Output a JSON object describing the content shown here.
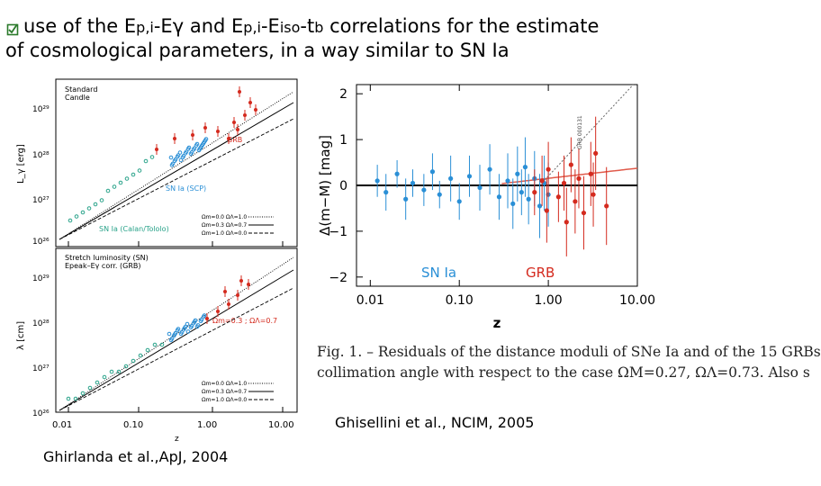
{
  "slide": {
    "title_parts": {
      "lead": "use of the  E",
      "p_i_1": "p,i",
      "mid1": "-E",
      "gamma": "γ",
      "mid2": " and E",
      "p_i_2": "p,i",
      "mid3": "-E",
      "iso": "iso",
      "mid4": "-t",
      "b": "b",
      "tail": " correlations for the estimate"
    },
    "title_line2": "of cosmological parameters, in a way similar to SN Ia",
    "credit_left": "Ghirlanda et al.,ApJ, 2004",
    "credit_right": "Ghisellini et al., NCIM, 2005",
    "colors": {
      "bullet": "#2b7a2b",
      "grb": "#d42a1e",
      "sn": "#2a8fd6",
      "sn_teal": "#2aa38a"
    }
  },
  "left_figure": {
    "top_panel": {
      "legend_title_1": "Standard",
      "legend_title_2": "Candle",
      "ylabel": "L_γ [erg]",
      "yticks": [
        "10²⁹",
        "10²⁸",
        "10²⁷",
        "10²⁶"
      ],
      "label_grb": "GRB",
      "label_sn_scp": "SN Ia (SCP)",
      "label_sn_calan": "SN Ia (Calan/Tololo)",
      "legend_lines": [
        "Ωm=0.0  ΩΛ=1.0",
        "Ωm=0.3  ΩΛ=0.7",
        "Ωm=1.0  ΩΛ=0.0"
      ]
    },
    "bottom_panel": {
      "legend_title_1": "Stretch luminosity (SN)",
      "legend_title_2": "Epeak–Eγ corr. (GRB)",
      "ylabel": "λ [cm]",
      "yticks": [
        "10²⁹",
        "10²⁸",
        "10²⁷",
        "10²⁶"
      ],
      "annotation": "Ωm=0.3 ; ΩΛ=0.7",
      "legend_lines": [
        "Ωm=0.0  ΩΛ=1.0",
        "Ωm=0.3  ΩΛ=0.7",
        "Ωm=1.0  ΩΛ=0.0"
      ]
    },
    "xticks": [
      "0.01",
      "0.10",
      "1.00",
      "10.00"
    ],
    "xlabel": "z"
  },
  "chart_data": {
    "type": "scatter",
    "ylabel": "Δ(m−M) [mag]",
    "xlabel": "z",
    "x_scale": "log",
    "xlim": [
      0.007,
      10
    ],
    "ylim": [
      -2.2,
      2.2
    ],
    "xticks": [
      "0.01",
      "0.10",
      "1.00",
      "10.00"
    ],
    "yticks": [
      "2",
      "1",
      "0",
      "−1",
      "−2"
    ],
    "labels": {
      "sn": "SN Ia",
      "grb": "GRB",
      "rotated_note": "GRB 000131"
    },
    "series": [
      {
        "name": "SN Ia",
        "color": "#2a8fd6",
        "points": [
          {
            "x": 0.012,
            "y": 0.1,
            "e": 0.35
          },
          {
            "x": 0.015,
            "y": -0.15,
            "e": 0.4
          },
          {
            "x": 0.02,
            "y": 0.25,
            "e": 0.3
          },
          {
            "x": 0.025,
            "y": -0.3,
            "e": 0.45
          },
          {
            "x": 0.03,
            "y": 0.05,
            "e": 0.3
          },
          {
            "x": 0.04,
            "y": -0.1,
            "e": 0.35
          },
          {
            "x": 0.05,
            "y": 0.3,
            "e": 0.4
          },
          {
            "x": 0.06,
            "y": -0.2,
            "e": 0.3
          },
          {
            "x": 0.08,
            "y": 0.15,
            "e": 0.5
          },
          {
            "x": 0.1,
            "y": -0.35,
            "e": 0.4
          },
          {
            "x": 0.13,
            "y": 0.2,
            "e": 0.45
          },
          {
            "x": 0.17,
            "y": -0.05,
            "e": 0.5
          },
          {
            "x": 0.22,
            "y": 0.35,
            "e": 0.55
          },
          {
            "x": 0.28,
            "y": -0.25,
            "e": 0.5
          },
          {
            "x": 0.35,
            "y": 0.1,
            "e": 0.6
          },
          {
            "x": 0.4,
            "y": -0.4,
            "e": 0.55
          },
          {
            "x": 0.45,
            "y": 0.25,
            "e": 0.6
          },
          {
            "x": 0.5,
            "y": -0.15,
            "e": 0.5
          },
          {
            "x": 0.55,
            "y": 0.4,
            "e": 0.65
          },
          {
            "x": 0.6,
            "y": -0.3,
            "e": 0.55
          },
          {
            "x": 0.7,
            "y": 0.15,
            "e": 0.6
          },
          {
            "x": 0.8,
            "y": -0.45,
            "e": 0.7
          },
          {
            "x": 0.9,
            "y": 0.05,
            "e": 0.6
          },
          {
            "x": 1.0,
            "y": -0.2,
            "e": 0.7
          }
        ]
      },
      {
        "name": "GRB",
        "color": "#d42a1e",
        "points": [
          {
            "x": 0.7,
            "y": -0.15,
            "e": 0.5
          },
          {
            "x": 0.85,
            "y": 0.1,
            "e": 0.55
          },
          {
            "x": 0.96,
            "y": -0.55,
            "e": 0.7
          },
          {
            "x": 1.0,
            "y": 0.35,
            "e": 0.6
          },
          {
            "x": 1.3,
            "y": -0.25,
            "e": 0.55
          },
          {
            "x": 1.5,
            "y": 0.05,
            "e": 0.6
          },
          {
            "x": 1.6,
            "y": -0.8,
            "e": 0.75
          },
          {
            "x": 1.8,
            "y": 0.45,
            "e": 0.6
          },
          {
            "x": 2.0,
            "y": -0.35,
            "e": 0.7
          },
          {
            "x": 2.2,
            "y": 0.15,
            "e": 0.65
          },
          {
            "x": 2.5,
            "y": -0.6,
            "e": 0.8
          },
          {
            "x": 3.0,
            "y": 0.25,
            "e": 0.7
          },
          {
            "x": 3.2,
            "y": -0.2,
            "e": 0.7
          },
          {
            "x": 3.4,
            "y": 0.7,
            "e": 0.8
          },
          {
            "x": 4.5,
            "y": -0.45,
            "e": 0.85
          }
        ]
      }
    ]
  },
  "caption": {
    "line1": "Fig. 1. – Residuals of the distance moduli of SNe Ia and of the 15 GRBs",
    "line2": "collimation angle with respect to the case ΩM=0.27, ΩΛ=0.73. Also s"
  }
}
